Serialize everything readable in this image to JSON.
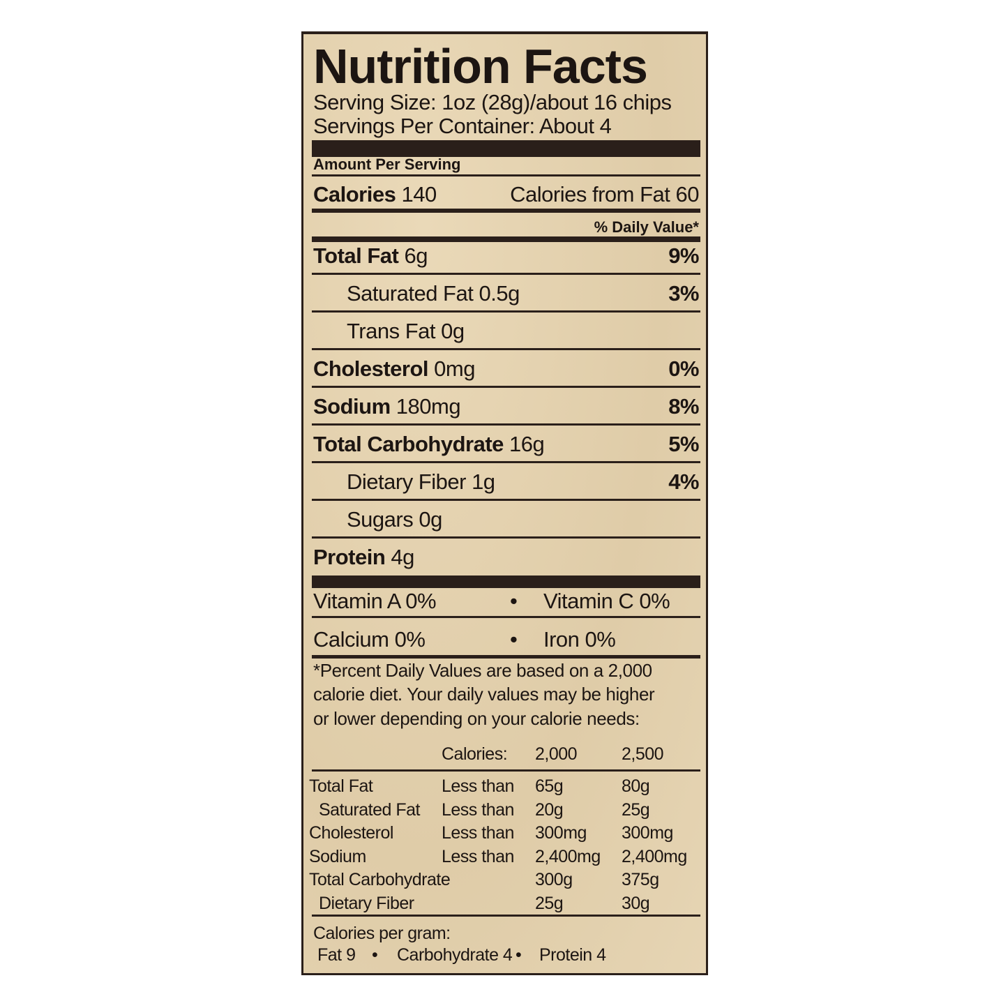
{
  "title": "Nutrition Facts",
  "serving_size": "Serving Size: 1oz (28g)/about 16 chips",
  "servings_per_container": "Servings Per Container: About 4",
  "amount_per_serving": "Amount Per Serving",
  "calories": {
    "label": "Calories",
    "value": "140",
    "from_fat": "Calories from Fat 60"
  },
  "daily_value_header": "% Daily Value*",
  "nutrients": [
    {
      "label": "Total Fat",
      "amount": "6g",
      "dv": "9%",
      "bold": true
    },
    {
      "label": "Saturated Fat",
      "amount": "0.5g",
      "dv": "3%",
      "bold": false
    },
    {
      "label": "Trans Fat",
      "amount": "0g",
      "dv": "",
      "bold": false
    },
    {
      "label": "Cholesterol",
      "amount": "0mg",
      "dv": "0%",
      "bold": true
    },
    {
      "label": "Sodium",
      "amount": "180mg",
      "dv": "8%",
      "bold": true
    },
    {
      "label": "Total Carbohydrate",
      "amount": "16g",
      "dv": "5%",
      "bold": true
    },
    {
      "label": "Dietary Fiber",
      "amount": "1g",
      "dv": "4%",
      "bold": false
    },
    {
      "label": "Sugars",
      "amount": "0g",
      "dv": "",
      "bold": false
    },
    {
      "label": "Protein",
      "amount": "4g",
      "dv": "",
      "bold": true
    }
  ],
  "vitamins": [
    [
      "Vitamin A 0%",
      "Vitamin C 0%"
    ],
    [
      "Calcium 0%",
      "Iron 0%"
    ]
  ],
  "bullet": "•",
  "footnote": [
    "*Percent Daily Values are based on a 2,000",
    "calorie diet. Your daily values may be higher",
    "or lower depending on your calorie needs:"
  ],
  "reference": {
    "header": [
      "Calories:",
      "2,000",
      "2,500"
    ],
    "rows": [
      [
        "Total Fat",
        "Less than",
        "65g",
        "80g"
      ],
      [
        " Saturated Fat",
        "Less than",
        "20g",
        "25g"
      ],
      [
        "Cholesterol",
        "Less than",
        "300mg",
        "300mg"
      ],
      [
        "Sodium",
        "Less than",
        "2,400mg",
        "2,400mg"
      ],
      [
        "Total Carbohydrate",
        "",
        "300g",
        "375g"
      ],
      [
        " Dietary Fiber",
        "",
        "25g",
        "30g"
      ]
    ]
  },
  "calories_per_gram": {
    "label": "Calories per gram:",
    "values": [
      "Fat 9",
      "Carbohydrate 4",
      "Protein 4"
    ]
  },
  "colors": {
    "background": "#e3d2b0",
    "ink": "#1c1512"
  }
}
